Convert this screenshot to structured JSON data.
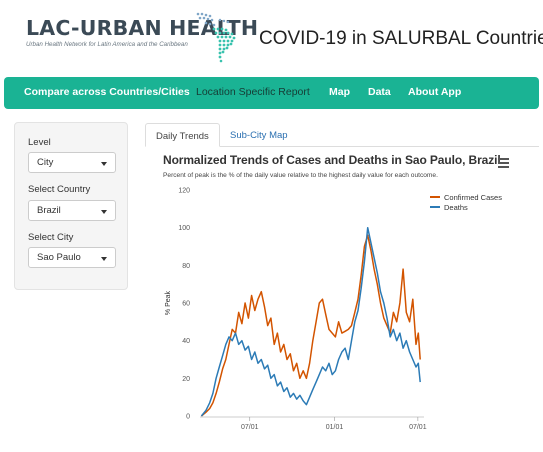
{
  "header": {
    "logo_text": "LAC-URBAN HEALTH",
    "logo_tagline": "Urban Health Network for Latin America and the Caribbean",
    "app_title": "COVID-19 in SALURBAL Countries"
  },
  "navbar": {
    "items": [
      {
        "label": "Compare across Countries/Cities"
      },
      {
        "label": "Location Specific Report"
      },
      {
        "label": "Map"
      },
      {
        "label": "Data"
      },
      {
        "label": "About App"
      }
    ],
    "active_index": 1
  },
  "sidebar": {
    "level": {
      "label": "Level",
      "value": "City"
    },
    "country": {
      "label": "Select Country",
      "value": "Brazil"
    },
    "city": {
      "label": "Select City",
      "value": "Sao Paulo"
    }
  },
  "tabs": [
    {
      "label": "Daily Trends",
      "active": true
    },
    {
      "label": "Sub-City Map",
      "active": false
    }
  ],
  "chart": {
    "title": "Normalized Trends of Cases and Deaths in Sao Paulo, Brazil",
    "subtitle": "Percent of peak is the % of the daily value relative to the highest daily value for each outcome.",
    "menu_icon": "hamburger-menu-icon"
  },
  "chart_data": {
    "type": "line",
    "ylabel": "% Peak",
    "xlabel": "",
    "ylim": [
      0,
      120
    ],
    "yticks": [
      0,
      20,
      40,
      60,
      80,
      100,
      120
    ],
    "xticks": [
      "07/01",
      "01/01",
      "07/01"
    ],
    "xlim": [
      "2020-03-15",
      "2021-07-10"
    ],
    "grid": false,
    "legend_position": "top-right",
    "series": [
      {
        "name": "Confirmed Cases",
        "color": "#d35400",
        "points": [
          [
            "2020-03-18",
            0
          ],
          [
            "2020-03-28",
            2
          ],
          [
            "2020-04-05",
            4
          ],
          [
            "2020-04-12",
            7
          ],
          [
            "2020-04-19",
            12
          ],
          [
            "2020-04-26",
            18
          ],
          [
            "2020-05-03",
            25
          ],
          [
            "2020-05-10",
            30
          ],
          [
            "2020-05-17",
            38
          ],
          [
            "2020-05-24",
            46
          ],
          [
            "2020-05-31",
            44
          ],
          [
            "2020-06-07",
            55
          ],
          [
            "2020-06-14",
            49
          ],
          [
            "2020-06-21",
            60
          ],
          [
            "2020-06-28",
            52
          ],
          [
            "2020-07-05",
            64
          ],
          [
            "2020-07-12",
            56
          ],
          [
            "2020-07-19",
            62
          ],
          [
            "2020-07-26",
            66
          ],
          [
            "2020-08-02",
            58
          ],
          [
            "2020-08-09",
            48
          ],
          [
            "2020-08-16",
            52
          ],
          [
            "2020-08-23",
            38
          ],
          [
            "2020-08-30",
            44
          ],
          [
            "2020-09-06",
            34
          ],
          [
            "2020-09-13",
            38
          ],
          [
            "2020-09-20",
            30
          ],
          [
            "2020-09-27",
            33
          ],
          [
            "2020-10-04",
            24
          ],
          [
            "2020-10-11",
            28
          ],
          [
            "2020-10-18",
            20
          ],
          [
            "2020-10-25",
            24
          ],
          [
            "2020-11-01",
            20
          ],
          [
            "2020-11-08",
            28
          ],
          [
            "2020-11-15",
            40
          ],
          [
            "2020-11-22",
            50
          ],
          [
            "2020-11-29",
            60
          ],
          [
            "2020-12-06",
            62
          ],
          [
            "2020-12-13",
            54
          ],
          [
            "2020-12-20",
            46
          ],
          [
            "2020-12-27",
            44
          ],
          [
            "2021-01-03",
            42
          ],
          [
            "2021-01-10",
            50
          ],
          [
            "2021-01-17",
            44
          ],
          [
            "2021-01-24",
            45
          ],
          [
            "2021-01-31",
            46
          ],
          [
            "2021-02-07",
            48
          ],
          [
            "2021-02-14",
            55
          ],
          [
            "2021-02-21",
            62
          ],
          [
            "2021-02-28",
            75
          ],
          [
            "2021-03-07",
            90
          ],
          [
            "2021-03-14",
            96
          ],
          [
            "2021-03-21",
            88
          ],
          [
            "2021-03-28",
            78
          ],
          [
            "2021-04-04",
            70
          ],
          [
            "2021-04-11",
            60
          ],
          [
            "2021-04-18",
            52
          ],
          [
            "2021-04-25",
            48
          ],
          [
            "2021-05-02",
            44
          ],
          [
            "2021-05-09",
            55
          ],
          [
            "2021-05-16",
            50
          ],
          [
            "2021-05-23",
            60
          ],
          [
            "2021-05-30",
            78
          ],
          [
            "2021-06-06",
            55
          ],
          [
            "2021-06-13",
            50
          ],
          [
            "2021-06-20",
            62
          ],
          [
            "2021-06-27",
            38
          ],
          [
            "2021-07-02",
            44
          ],
          [
            "2021-07-06",
            30
          ]
        ]
      },
      {
        "name": "Deaths",
        "color": "#2c7bb6",
        "points": [
          [
            "2020-03-18",
            0
          ],
          [
            "2020-03-28",
            3
          ],
          [
            "2020-04-05",
            7
          ],
          [
            "2020-04-12",
            12
          ],
          [
            "2020-04-19",
            20
          ],
          [
            "2020-04-26",
            26
          ],
          [
            "2020-05-03",
            32
          ],
          [
            "2020-05-10",
            38
          ],
          [
            "2020-05-17",
            42
          ],
          [
            "2020-05-24",
            40
          ],
          [
            "2020-05-31",
            44
          ],
          [
            "2020-06-07",
            38
          ],
          [
            "2020-06-14",
            40
          ],
          [
            "2020-06-21",
            35
          ],
          [
            "2020-06-28",
            37
          ],
          [
            "2020-07-05",
            30
          ],
          [
            "2020-07-12",
            34
          ],
          [
            "2020-07-19",
            28
          ],
          [
            "2020-07-26",
            30
          ],
          [
            "2020-08-02",
            25
          ],
          [
            "2020-08-09",
            27
          ],
          [
            "2020-08-16",
            20
          ],
          [
            "2020-08-23",
            22
          ],
          [
            "2020-08-30",
            16
          ],
          [
            "2020-09-06",
            18
          ],
          [
            "2020-09-13",
            13
          ],
          [
            "2020-09-20",
            15
          ],
          [
            "2020-09-27",
            10
          ],
          [
            "2020-10-04",
            12
          ],
          [
            "2020-10-11",
            9
          ],
          [
            "2020-10-18",
            11
          ],
          [
            "2020-10-25",
            8
          ],
          [
            "2020-11-01",
            6
          ],
          [
            "2020-11-08",
            10
          ],
          [
            "2020-11-15",
            14
          ],
          [
            "2020-11-22",
            18
          ],
          [
            "2020-11-29",
            22
          ],
          [
            "2020-12-06",
            26
          ],
          [
            "2020-12-13",
            24
          ],
          [
            "2020-12-20",
            28
          ],
          [
            "2020-12-27",
            22
          ],
          [
            "2021-01-03",
            24
          ],
          [
            "2021-01-10",
            30
          ],
          [
            "2021-01-17",
            34
          ],
          [
            "2021-01-24",
            36
          ],
          [
            "2021-01-31",
            30
          ],
          [
            "2021-02-07",
            40
          ],
          [
            "2021-02-14",
            50
          ],
          [
            "2021-02-21",
            56
          ],
          [
            "2021-02-28",
            68
          ],
          [
            "2021-03-07",
            82
          ],
          [
            "2021-03-14",
            100
          ],
          [
            "2021-03-21",
            92
          ],
          [
            "2021-03-28",
            84
          ],
          [
            "2021-04-04",
            76
          ],
          [
            "2021-04-11",
            66
          ],
          [
            "2021-04-18",
            60
          ],
          [
            "2021-04-25",
            52
          ],
          [
            "2021-05-02",
            42
          ],
          [
            "2021-05-09",
            46
          ],
          [
            "2021-05-16",
            40
          ],
          [
            "2021-05-23",
            44
          ],
          [
            "2021-05-30",
            36
          ],
          [
            "2021-06-06",
            40
          ],
          [
            "2021-06-13",
            34
          ],
          [
            "2021-06-20",
            30
          ],
          [
            "2021-06-27",
            26
          ],
          [
            "2021-07-02",
            28
          ],
          [
            "2021-07-06",
            18
          ]
        ]
      }
    ]
  }
}
